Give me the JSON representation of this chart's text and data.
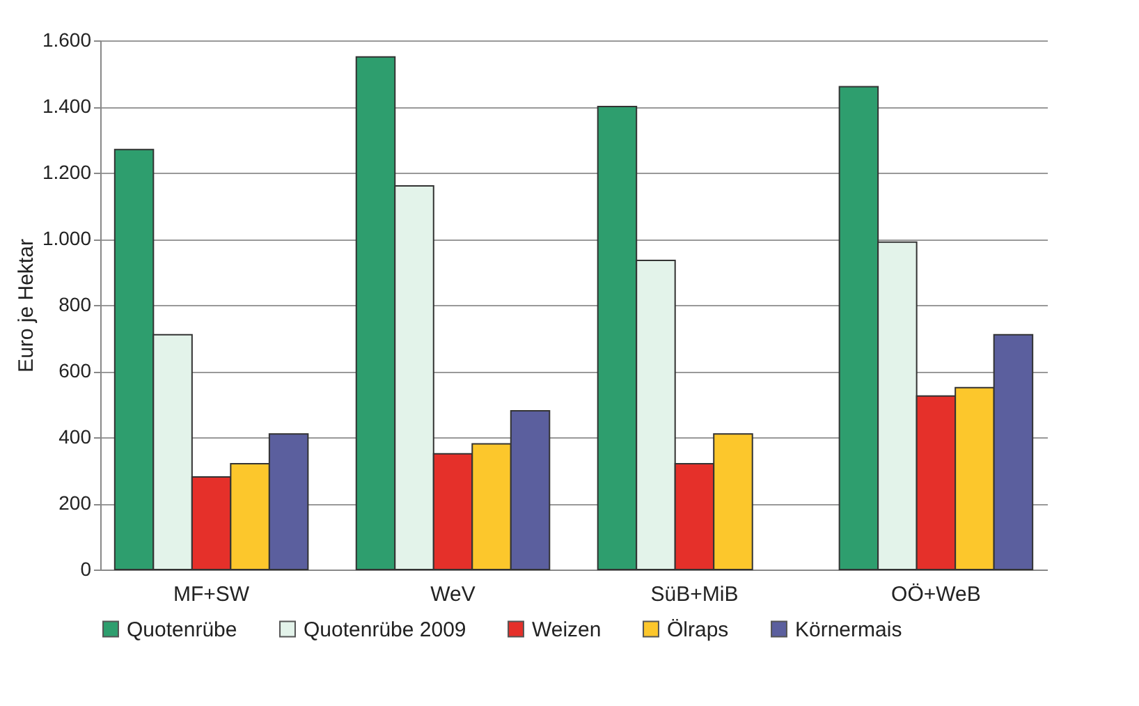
{
  "chart_data": {
    "type": "bar",
    "ylabel": "Euro je Hektar",
    "categories": [
      "MF+SW",
      "WeV",
      "SüB+MiB",
      "OÖ+WeB"
    ],
    "series": [
      {
        "name": "Quotenrübe",
        "color": "#2e9e6e",
        "values": [
          1270,
          1550,
          1400,
          1460
        ]
      },
      {
        "name": "Quotenrübe 2009",
        "color": "#e3f3ea",
        "values": [
          710,
          1160,
          935,
          990
        ]
      },
      {
        "name": "Weizen",
        "color": "#e5302a",
        "values": [
          280,
          350,
          320,
          525
        ]
      },
      {
        "name": "Ölraps",
        "color": "#fcc72c",
        "values": [
          320,
          380,
          410,
          550
        ]
      },
      {
        "name": "Körnermais",
        "color": "#5b5f9e",
        "values": [
          410,
          480,
          null,
          710
        ]
      }
    ],
    "ylim": [
      0,
      1600
    ],
    "yticks": [
      0,
      200,
      400,
      600,
      800,
      {
        "value": 1000,
        "label": "1.000"
      },
      {
        "value": 1200,
        "label": "1.200"
      },
      {
        "value": 1400,
        "label": "1.400"
      },
      {
        "value": 1600,
        "label": "1.600"
      }
    ],
    "grid": "y",
    "legend": "bottom"
  }
}
